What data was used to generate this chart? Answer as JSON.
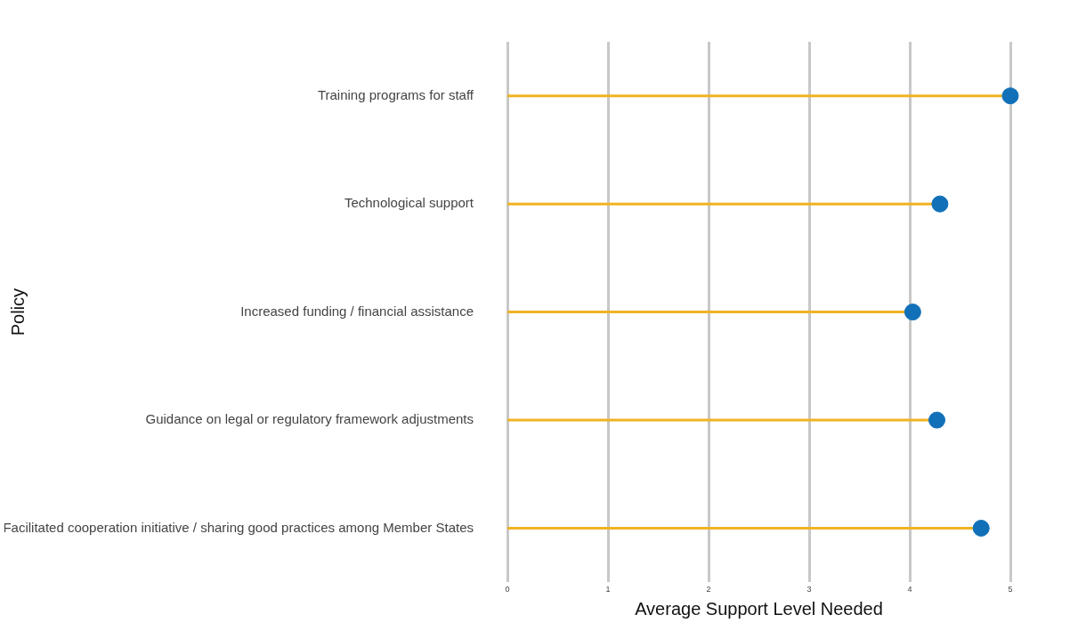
{
  "chart_data": {
    "type": "lollipop",
    "orientation": "horizontal",
    "xlabel": "Average Support Level Needed",
    "ylabel": "Policy",
    "categories": [
      "Training programs for staff",
      "Technological support",
      "Increased funding / financial assistance",
      "Guidance on legal or regulatory framework adjustments",
      "Facilitated cooperation initiative / sharing good practices among Member States"
    ],
    "series": [
      {
        "color": "#1170b8",
        "values": [
          5.0,
          4.3,
          4.03,
          4.27,
          4.71
        ]
      }
    ],
    "xlim": [
      0,
      5
    ],
    "xticks": [
      0,
      1,
      2,
      3,
      4,
      5
    ],
    "grid": "x",
    "legend": false,
    "marker": "circle"
  }
}
